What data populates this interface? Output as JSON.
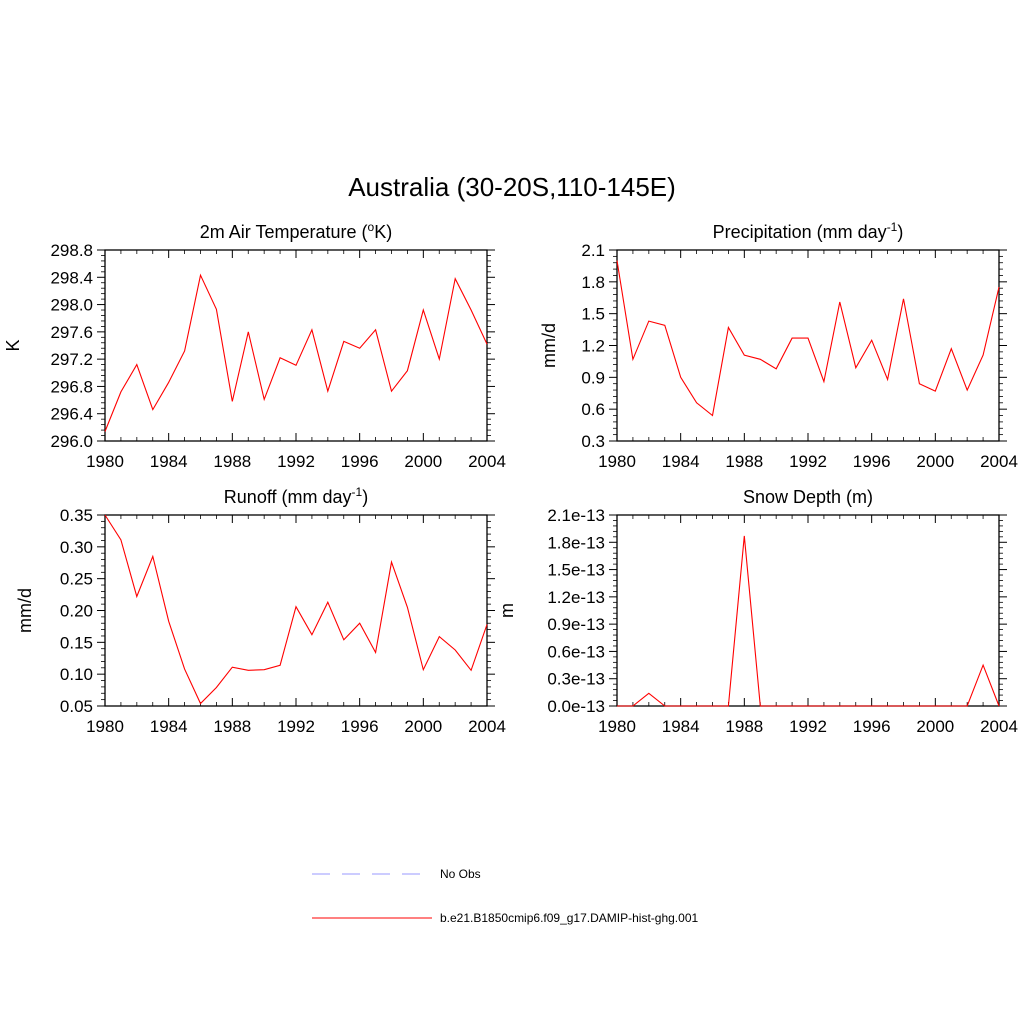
{
  "title": "Australia (30-20S,110-145E)",
  "colors": {
    "model": "#ff0000",
    "obs": "#9999ff",
    "axis": "#000000"
  },
  "legend": {
    "placement": "bottom-center",
    "items": [
      {
        "label": "No Obs",
        "style": "dashed",
        "color": "#9999ff"
      },
      {
        "label": "b.e21.B1850cmip6.f09_g17.DAMIP-hist-ghg.001",
        "style": "solid",
        "color": "#ff0000"
      }
    ]
  },
  "chart_data": [
    {
      "type": "line",
      "title": "2m Air Temperature (",
      "title_sup": "o",
      "title_end": "K)",
      "ylabel": "K",
      "xlim": [
        1980,
        2004
      ],
      "ylim": [
        296.0,
        298.8
      ],
      "xticks": [
        1980,
        1984,
        1988,
        1992,
        1996,
        2000,
        2004
      ],
      "xtick_labels": [
        "1980",
        "1984",
        "1988",
        "1992",
        "1996",
        "2000",
        "2004"
      ],
      "yticks": [
        296.0,
        296.4,
        296.8,
        297.2,
        297.6,
        298.0,
        298.4,
        298.8
      ],
      "ytick_labels": [
        "296.0",
        "296.4",
        "296.8",
        "297.2",
        "297.6",
        "298.0",
        "298.4",
        "298.8"
      ],
      "grid": false,
      "series": [
        {
          "x": [
            1980,
            1981,
            1982,
            1983,
            1984,
            1985,
            1986,
            1987,
            1988,
            1989,
            1990,
            1991,
            1992,
            1993,
            1994,
            1995,
            1996,
            1997,
            1998,
            1999,
            2000,
            2001,
            2002,
            2003,
            2004
          ],
          "values": [
            296.14,
            296.72,
            297.12,
            296.46,
            296.86,
            297.32,
            298.43,
            297.93,
            296.58,
            297.6,
            296.61,
            297.22,
            297.11,
            297.63,
            296.73,
            297.46,
            297.36,
            297.63,
            296.73,
            297.03,
            297.92,
            297.2,
            298.38,
            297.92,
            297.42
          ]
        }
      ]
    },
    {
      "type": "line",
      "title": "Precipitation (mm day",
      "title_sup": "-1",
      "title_end": ")",
      "ylabel": "mm/d",
      "xlim": [
        1980,
        2004
      ],
      "ylim": [
        0.3,
        2.1
      ],
      "xticks": [
        1980,
        1984,
        1988,
        1992,
        1996,
        2000,
        2004
      ],
      "xtick_labels": [
        "1980",
        "1984",
        "1988",
        "1992",
        "1996",
        "2000",
        "2004"
      ],
      "yticks": [
        0.3,
        0.6,
        0.9,
        1.2,
        1.5,
        1.8,
        2.1
      ],
      "ytick_labels": [
        "0.3",
        "0.6",
        "0.9",
        "1.2",
        "1.5",
        "1.8",
        "2.1"
      ],
      "grid": false,
      "series": [
        {
          "x": [
            1980,
            1981,
            1982,
            1983,
            1984,
            1985,
            1986,
            1987,
            1988,
            1989,
            1990,
            1991,
            1992,
            1993,
            1994,
            1995,
            1996,
            1997,
            1998,
            1999,
            2000,
            2001,
            2002,
            2003,
            2004
          ],
          "values": [
            2.0,
            1.07,
            1.43,
            1.39,
            0.9,
            0.66,
            0.54,
            1.37,
            1.11,
            1.07,
            0.98,
            1.27,
            1.27,
            0.86,
            1.61,
            0.99,
            1.25,
            0.88,
            1.64,
            0.84,
            0.77,
            1.17,
            0.78,
            1.11,
            1.75
          ]
        }
      ]
    },
    {
      "type": "line",
      "title": "Runoff (mm day",
      "title_sup": "-1",
      "title_end": ")",
      "ylabel": "mm/d",
      "xlim": [
        1980,
        2004
      ],
      "ylim": [
        0.05,
        0.35
      ],
      "xticks": [
        1980,
        1984,
        1988,
        1992,
        1996,
        2000,
        2004
      ],
      "xtick_labels": [
        "1980",
        "1984",
        "1988",
        "1992",
        "1996",
        "2000",
        "2004"
      ],
      "yticks": [
        0.05,
        0.1,
        0.15,
        0.2,
        0.25,
        0.3,
        0.35
      ],
      "ytick_labels": [
        "0.05",
        "0.10",
        "0.15",
        "0.20",
        "0.25",
        "0.30",
        "0.35"
      ],
      "grid": false,
      "series": [
        {
          "x": [
            1980,
            1981,
            1982,
            1983,
            1984,
            1985,
            1986,
            1987,
            1988,
            1989,
            1990,
            1991,
            1992,
            1993,
            1994,
            1995,
            1996,
            1997,
            1998,
            1999,
            2000,
            2001,
            2002,
            2003,
            2004
          ],
          "values": [
            0.35,
            0.311,
            0.222,
            0.285,
            0.183,
            0.108,
            0.054,
            0.079,
            0.111,
            0.106,
            0.107,
            0.114,
            0.206,
            0.162,
            0.213,
            0.154,
            0.18,
            0.134,
            0.276,
            0.205,
            0.107,
            0.159,
            0.138,
            0.106,
            0.178
          ]
        }
      ]
    },
    {
      "type": "line",
      "title": "Snow Depth (m)",
      "title_sup": "",
      "title_end": "",
      "ylabel": "m",
      "xlim": [
        1980,
        2004
      ],
      "ylim": [
        0.0,
        2.1e-13
      ],
      "xticks": [
        1980,
        1984,
        1988,
        1992,
        1996,
        2000,
        2004
      ],
      "xtick_labels": [
        "1980",
        "1984",
        "1988",
        "1992",
        "1996",
        "2000",
        "2004"
      ],
      "yticks": [
        0.0,
        3e-14,
        6e-14,
        9e-14,
        1.2e-13,
        1.5e-13,
        1.8e-13,
        2.1e-13
      ],
      "ytick_labels": [
        "0.0e-13",
        "0.3e-13",
        "0.6e-13",
        "0.9e-13",
        "1.2e-13",
        "1.5e-13",
        "1.8e-13",
        "2.1e-13"
      ],
      "grid": false,
      "series": [
        {
          "x": [
            1980,
            1981,
            1982,
            1983,
            1984,
            1985,
            1986,
            1987,
            1988,
            1989,
            1990,
            1991,
            1992,
            1993,
            1994,
            1995,
            1996,
            1997,
            1998,
            1999,
            2000,
            2001,
            2002,
            2003,
            2004
          ],
          "values": [
            0,
            0,
            1.4e-14,
            0,
            0,
            0,
            0,
            0,
            1.87e-13,
            0,
            0,
            0,
            0,
            0,
            0,
            0,
            0,
            0,
            0,
            0,
            0,
            0,
            0,
            4.5e-14,
            0
          ]
        }
      ]
    }
  ]
}
